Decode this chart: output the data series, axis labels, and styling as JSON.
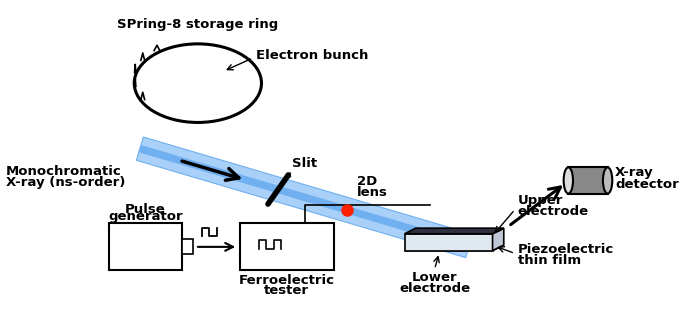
{
  "bg_color": "#ffffff",
  "labels": {
    "spring8": "SPring-8 storage ring",
    "electron_bunch": "Electron bunch",
    "slit": "Slit",
    "mono_line1": "Monochromatic",
    "mono_line2": "X-ray (ns-order)",
    "lens_2d_line1": "2D",
    "lens_2d_line2": "lens",
    "upper_electrode_line1": "Upper",
    "upper_electrode_line2": "electrode",
    "xray_line1": "X-ray",
    "xray_line2": "detector",
    "pulse_line1": "Pulse",
    "pulse_line2": "generator",
    "ferro_line1": "Ferroelectric",
    "ferro_line2": "tester",
    "lower_line1": "Lower",
    "lower_line2": "electrode",
    "piezo_line1": "Piezoelectric",
    "piezo_line2": "thin film"
  },
  "colors": {
    "beam_light": "#a8d0f8",
    "beam_mid": "#70b0f0",
    "beam_dark": "#3888e0",
    "red": "#ff2000",
    "black": "#000000",
    "gray_dark": "#555555",
    "gray_mid": "#888888",
    "gray_light": "#bbbbbb",
    "blue_electrode": "#2060c0",
    "white": "#ffffff",
    "sample_gray": "#e0e8f0"
  }
}
